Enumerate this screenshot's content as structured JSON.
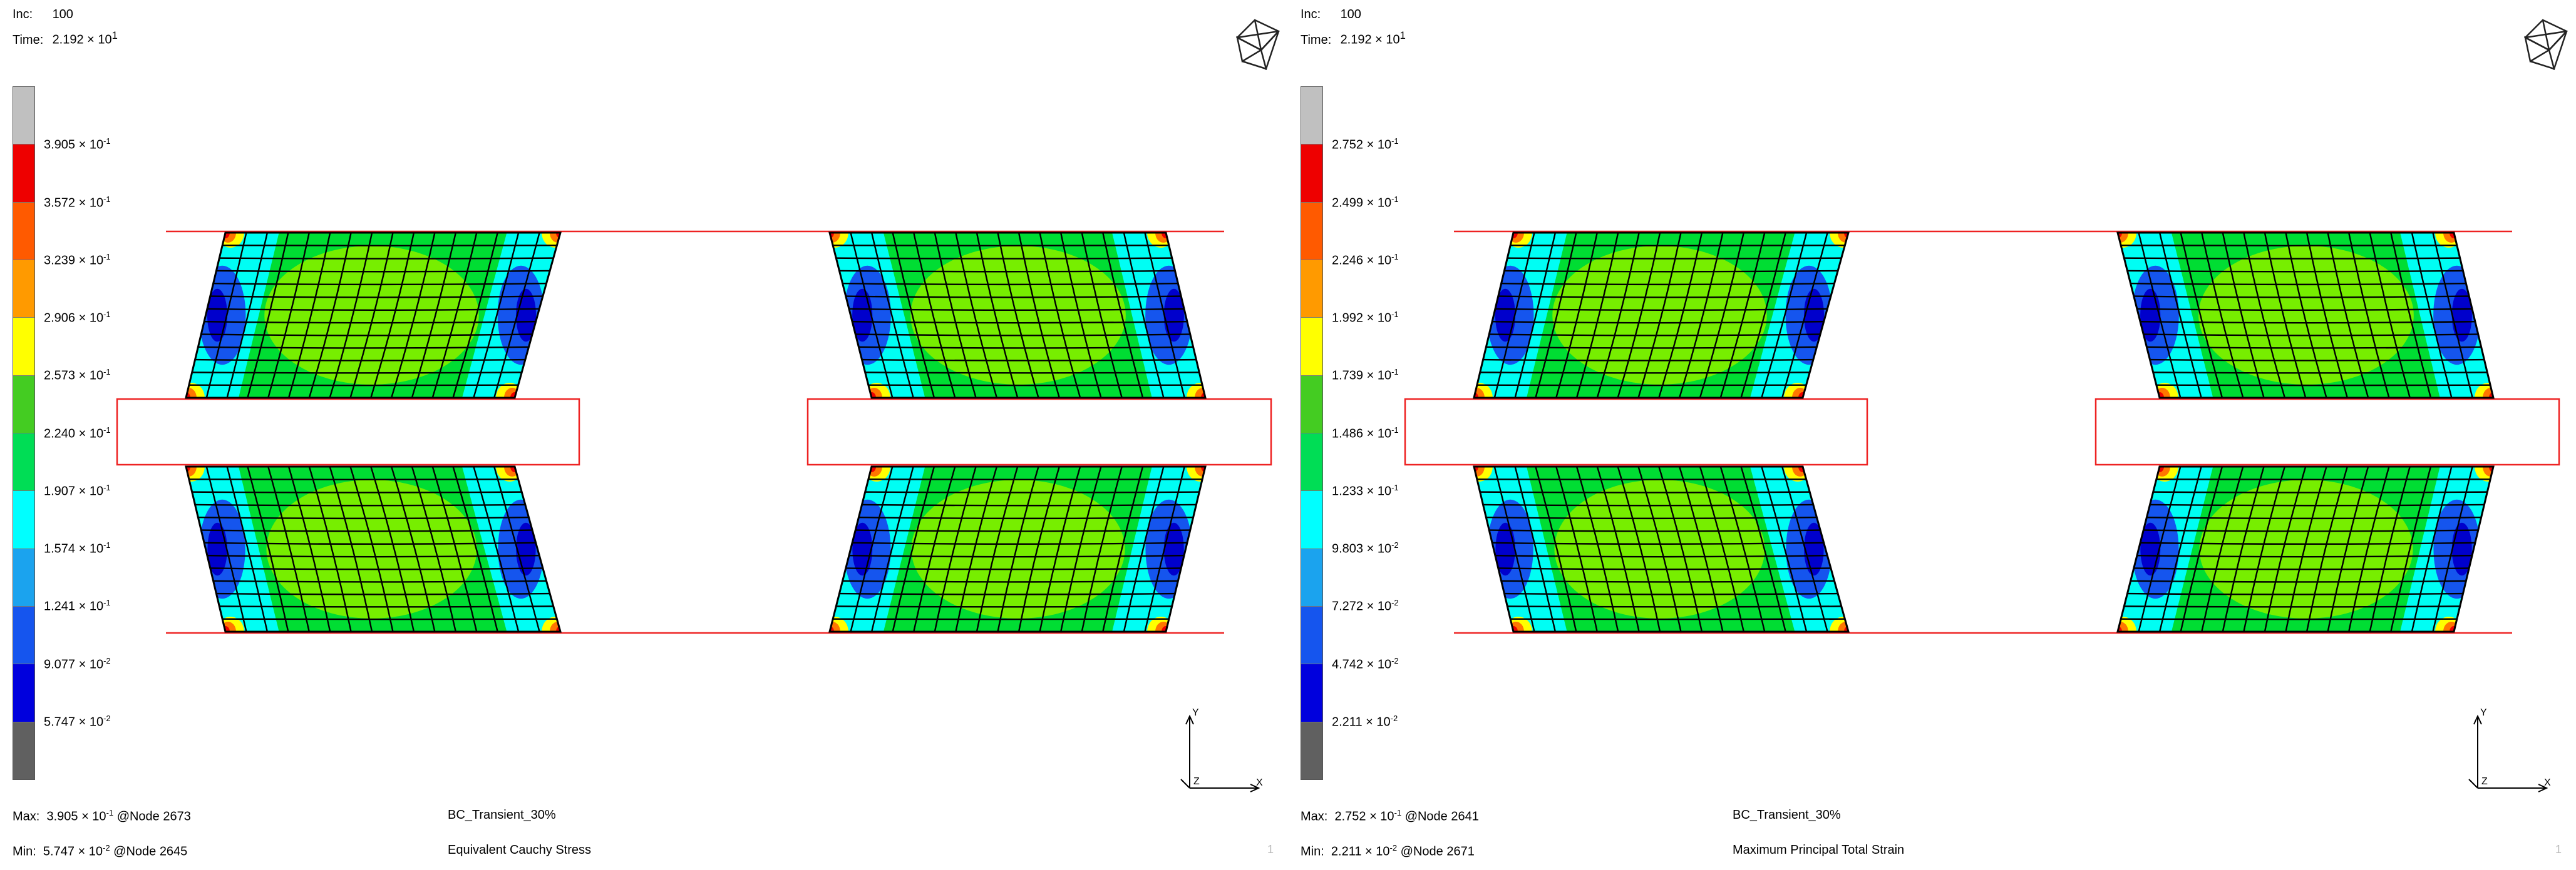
{
  "panels": [
    {
      "inc_label": "Inc:",
      "inc_value": "100",
      "time_label": "Time:",
      "time_value": "2.192 × 10",
      "time_exp": "1",
      "scale": {
        "colors": [
          "#c0c0c0",
          "#ee0000",
          "#ff5a00",
          "#ff9a00",
          "#ffff00",
          "#44cc22",
          "#00dd55",
          "#00ffff",
          "#1ba3ee",
          "#1555ee",
          "#0000dd",
          "#606060"
        ],
        "ticks": [
          {
            "m": "3.905 × 10",
            "e": "-1"
          },
          {
            "m": "3.572 × 10",
            "e": "-1"
          },
          {
            "m": "3.239 × 10",
            "e": "-1"
          },
          {
            "m": "2.906 × 10",
            "e": "-1"
          },
          {
            "m": "2.573 × 10",
            "e": "-1"
          },
          {
            "m": "2.240 × 10",
            "e": "-1"
          },
          {
            "m": "1.907 × 10",
            "e": "-1"
          },
          {
            "m": "1.574 × 10",
            "e": "-1"
          },
          {
            "m": "1.241 × 10",
            "e": "-1"
          },
          {
            "m": "9.077 × 10",
            "e": "-2"
          },
          {
            "m": "5.747 × 10",
            "e": "-2"
          }
        ]
      },
      "max_label": "Max:",
      "max_m": "3.905 × 10",
      "max_e": "-1",
      "max_node": "@Node 2673",
      "min_label": "Min:",
      "min_m": "5.747 × 10",
      "min_e": "-2",
      "min_node": "@Node 2645",
      "load_case": "BC_Transient_30%",
      "quantity": "Equivalent Cauchy Stress",
      "page": "1",
      "axis_y": "Y",
      "axis_x": "X",
      "axis_z": "Z",
      "style": {
        "outer_ring": "#00ffff",
        "mid_color": "#00dd33",
        "center_color": "#77ee00",
        "corner_color": "#1555ee",
        "inner_corner": "#0000cc"
      }
    },
    {
      "inc_label": "Inc:",
      "inc_value": "100",
      "time_label": "Time:",
      "time_value": "2.192 × 10",
      "time_exp": "1",
      "scale": {
        "colors": [
          "#c0c0c0",
          "#ee0000",
          "#ff5a00",
          "#ff9a00",
          "#ffff00",
          "#44cc22",
          "#00dd55",
          "#00ffff",
          "#1ba3ee",
          "#1555ee",
          "#0000dd",
          "#606060"
        ],
        "ticks": [
          {
            "m": "2.752 × 10",
            "e": "-1"
          },
          {
            "m": "2.499 × 10",
            "e": "-1"
          },
          {
            "m": "2.246 × 10",
            "e": "-1"
          },
          {
            "m": "1.992 × 10",
            "e": "-1"
          },
          {
            "m": "1.739 × 10",
            "e": "-1"
          },
          {
            "m": "1.486 × 10",
            "e": "-1"
          },
          {
            "m": "1.233 × 10",
            "e": "-1"
          },
          {
            "m": "9.803 × 10",
            "e": "-2"
          },
          {
            "m": "7.272 × 10",
            "e": "-2"
          },
          {
            "m": "4.742 × 10",
            "e": "-2"
          },
          {
            "m": "2.211 × 10",
            "e": "-2"
          }
        ]
      },
      "max_label": "Max:",
      "max_m": "2.752 × 10",
      "max_e": "-1",
      "max_node": "@Node 2641",
      "min_label": "Min:",
      "min_m": "2.211 × 10",
      "min_e": "-2",
      "min_node": "@Node 2671",
      "load_case": "BC_Transient_30%",
      "quantity": "Maximum Principal Total Strain",
      "page": "1",
      "axis_y": "Y",
      "axis_x": "X",
      "axis_z": "Z",
      "style": {
        "outer_ring": "#00ffff",
        "mid_color": "#00dd33",
        "center_color": "#77ee00",
        "corner_color": "#1555ee",
        "inner_corner": "#0000cc"
      }
    }
  ]
}
